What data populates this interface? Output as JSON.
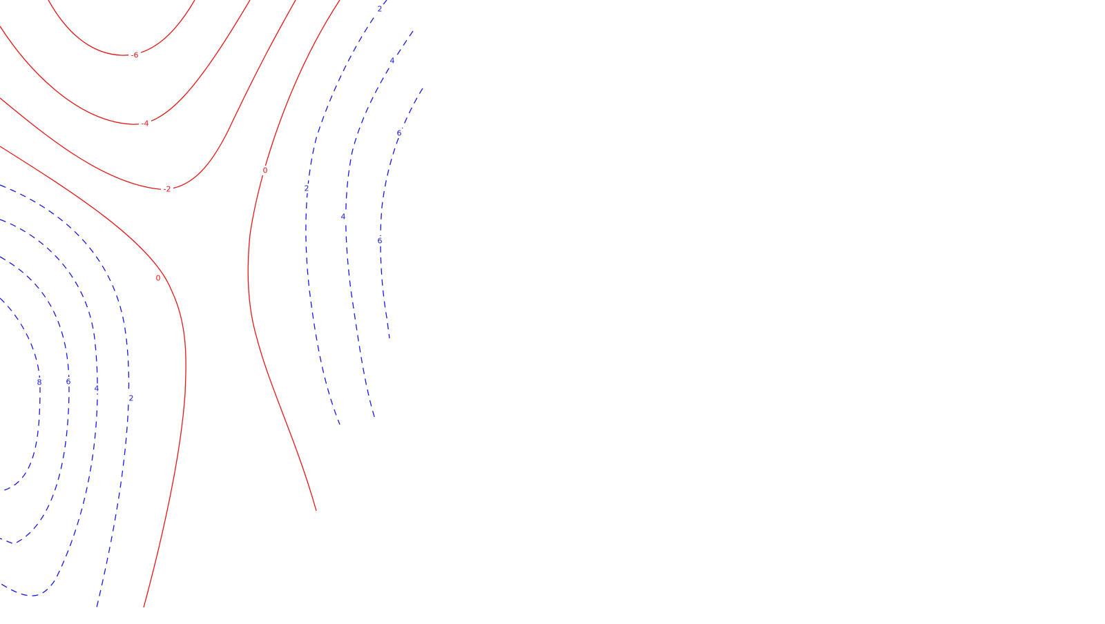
{
  "chart_data": {
    "type": "contour",
    "grid": false,
    "colors": {
      "positive": "#1515e6",
      "non_positive": "#e61515",
      "background": "#ffffff"
    },
    "line_styles": {
      "positive": "dashed",
      "non_positive": "solid"
    },
    "levels": [
      -6,
      -4,
      -2,
      0,
      2,
      4,
      6,
      8
    ],
    "contour_labels": [
      {
        "text": "-6",
        "level": -6
      },
      {
        "text": "-4",
        "level": -4
      },
      {
        "text": "-2",
        "level": -2
      },
      {
        "text": "0",
        "level": 0
      },
      {
        "text": "0",
        "level": 0
      },
      {
        "text": "2",
        "level": 2
      },
      {
        "text": "2",
        "level": 2
      },
      {
        "text": "2",
        "level": 2
      },
      {
        "text": "4",
        "level": 4
      },
      {
        "text": "4",
        "level": 4
      },
      {
        "text": "4",
        "level": 4
      },
      {
        "text": "6",
        "level": 6
      },
      {
        "text": "6",
        "level": 6
      },
      {
        "text": "6",
        "level": 6
      },
      {
        "text": "8",
        "level": 8
      }
    ]
  }
}
